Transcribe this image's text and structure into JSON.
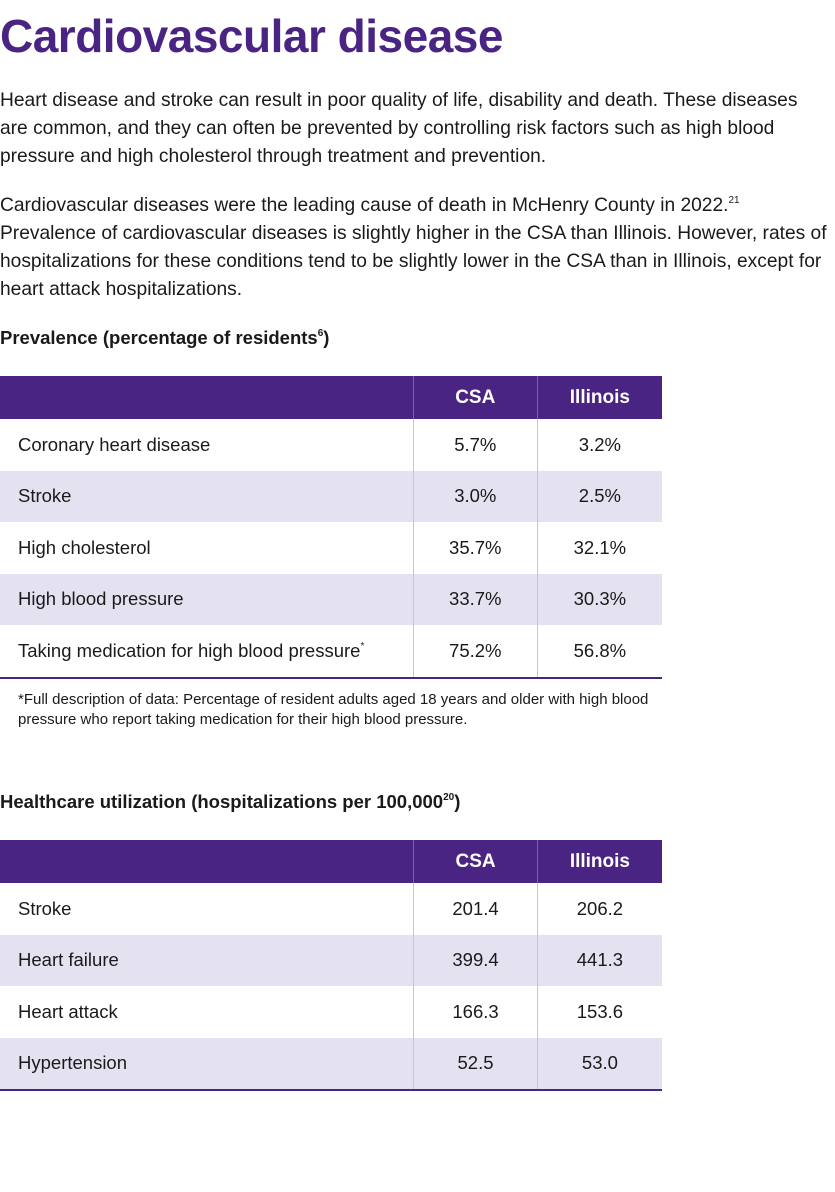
{
  "title": "Cardiovascular disease",
  "intro": {
    "paragraph1": "Heart disease and stroke can result in poor quality of life, disability and death. These diseases are common, and they can often be prevented by controlling risk factors such as high blood pressure and high cholesterol through treatment and prevention.",
    "paragraph2": "Cardiovascular diseases were the leading cause of death in McHenry County in 2022.",
    "paragraph2_ref": "21",
    "paragraph2_cont": "Prevalence of cardiovascular diseases is slightly higher in the CSA than Illinois. However, rates of hospitalizations for these conditions tend to be slightly lower in the CSA than in Illinois, except for heart attack hospitalizations."
  },
  "prevalence": {
    "heading": "Prevalence (percentage of residents",
    "heading_ref": "6",
    "heading_close": ")",
    "columns": [
      "",
      "CSA",
      "Illinois"
    ],
    "rows": [
      {
        "label": "Coronary heart disease",
        "csa": "5.7%",
        "illinois": "3.2%"
      },
      {
        "label": "Stroke",
        "csa": "3.0%",
        "illinois": "2.5%"
      },
      {
        "label": "High cholesterol",
        "csa": "35.7%",
        "illinois": "32.1%"
      },
      {
        "label": "High blood pressure",
        "csa": "33.7%",
        "illinois": "30.3%"
      },
      {
        "label": "Taking medication for high blood pressure",
        "label_mark": "*",
        "csa": "75.2%",
        "illinois": "56.8%"
      }
    ],
    "footnote": "*Full description of data: Percentage of resident adults aged 18 years and older with high blood pressure who report taking medication for their high blood pressure."
  },
  "utilization": {
    "heading": "Healthcare utilization (hospitalizations per 100,000",
    "heading_ref": "20",
    "heading_close": ")",
    "columns": [
      "",
      "CSA",
      "Illinois"
    ],
    "rows": [
      {
        "label": "Stroke",
        "csa": "201.4",
        "illinois": "206.2"
      },
      {
        "label": "Heart failure",
        "csa": "399.4",
        "illinois": "441.3"
      },
      {
        "label": "Heart attack",
        "csa": "166.3",
        "illinois": "153.6"
      },
      {
        "label": "Hypertension",
        "csa": "52.5",
        "illinois": "53.0"
      }
    ]
  },
  "colors": {
    "brand_purple": "#4a2483",
    "stripe": "#e4e1f1"
  }
}
